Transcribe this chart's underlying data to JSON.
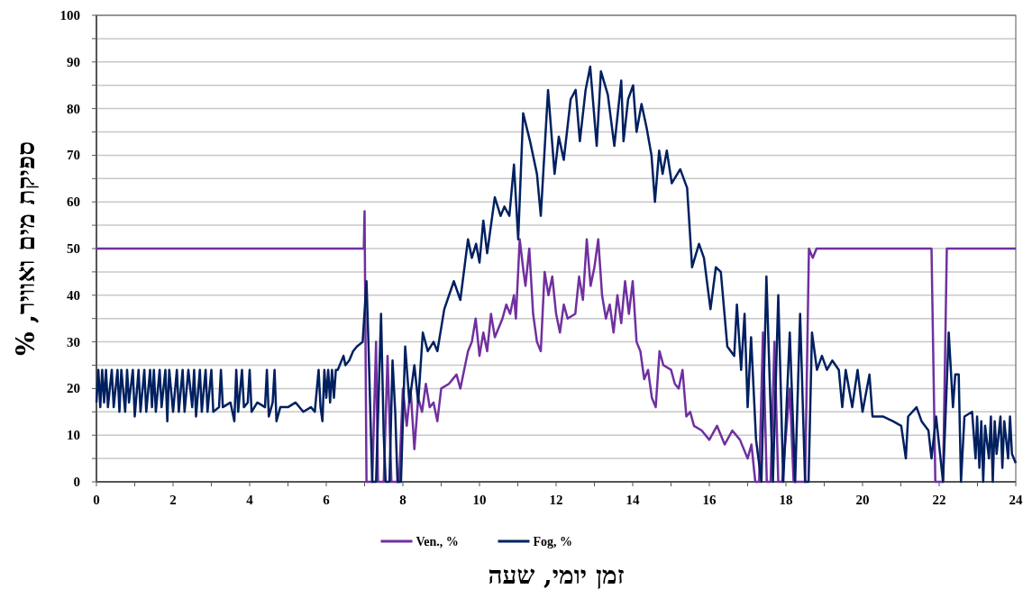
{
  "chart_data": {
    "type": "line",
    "xlabel": "זמן יומי, שעה",
    "ylabel": "ספיקת מים ואוויר, %",
    "xlim": [
      0,
      24
    ],
    "xticks": [
      0,
      {
        "value": 1,
        "label": null
      },
      2,
      {
        "value": 3,
        "label": null
      },
      4,
      {
        "value": 5,
        "label": null
      },
      6,
      {
        "value": 7,
        "label": null
      },
      8,
      {
        "value": 9,
        "label": null
      },
      10,
      {
        "value": 11,
        "label": null
      },
      12,
      {
        "value": 13,
        "label": null
      },
      14,
      {
        "value": 15,
        "label": null
      },
      16,
      {
        "value": 17,
        "label": null
      },
      18,
      {
        "value": 19,
        "label": null
      },
      20,
      {
        "value": 21,
        "label": null
      },
      22,
      {
        "value": 23,
        "label": null
      },
      24
    ],
    "ylim": [
      0,
      100
    ],
    "yticks": [
      0,
      {
        "value": 5,
        "label": null
      },
      10,
      {
        "value": 15,
        "label": null
      },
      20,
      {
        "value": 25,
        "label": null
      },
      30,
      {
        "value": 35,
        "label": null
      },
      40,
      {
        "value": 45,
        "label": null
      },
      50,
      {
        "value": 55,
        "label": null
      },
      60,
      {
        "value": 65,
        "label": null
      },
      70,
      {
        "value": 75,
        "label": null
      },
      80,
      {
        "value": 85,
        "label": null
      },
      90,
      {
        "value": 95,
        "label": null
      },
      100
    ],
    "grid": "y",
    "legend": "bottom",
    "marker": "none",
    "series": [
      {
        "name": "Ven., %",
        "color": "#7030a0",
        "x": [
          0,
          6.98,
          7.0,
          7.05,
          7.2,
          7.3,
          7.35,
          7.5,
          7.6,
          7.7,
          7.9,
          8.0,
          8.1,
          8.2,
          8.3,
          8.4,
          8.5,
          8.6,
          8.7,
          8.8,
          8.9,
          9.0,
          9.2,
          9.4,
          9.5,
          9.7,
          9.8,
          9.9,
          10.0,
          10.1,
          10.2,
          10.3,
          10.4,
          10.6,
          10.7,
          10.8,
          10.9,
          10.95,
          11.05,
          11.15,
          11.2,
          11.3,
          11.4,
          11.5,
          11.6,
          11.7,
          11.8,
          11.9,
          12.0,
          12.1,
          12.2,
          12.3,
          12.5,
          12.6,
          12.7,
          12.8,
          12.9,
          13.0,
          13.1,
          13.2,
          13.3,
          13.4,
          13.5,
          13.6,
          13.7,
          13.8,
          13.9,
          14.0,
          14.1,
          14.2,
          14.3,
          14.4,
          14.5,
          14.6,
          14.7,
          14.8,
          15.0,
          15.1,
          15.2,
          15.3,
          15.4,
          15.5,
          15.6,
          15.8,
          16.0,
          16.2,
          16.4,
          16.6,
          16.8,
          17.0,
          17.1,
          17.2,
          17.3,
          17.4,
          17.5,
          17.6,
          17.7,
          17.8,
          17.9,
          18.1,
          18.2,
          18.5,
          18.6,
          18.7,
          18.8,
          21.8,
          21.9,
          22.1,
          22.2,
          24
        ],
        "values": [
          50,
          50,
          58,
          0,
          0,
          30,
          0,
          0,
          27,
          0,
          0,
          20,
          12,
          20,
          7,
          18,
          15,
          21,
          16,
          17,
          13,
          20,
          21,
          23,
          20,
          28,
          30,
          35,
          27,
          32,
          28,
          36,
          31,
          35,
          38,
          36,
          40,
          35,
          52,
          45,
          42,
          50,
          36,
          30,
          28,
          45,
          40,
          44,
          36,
          32,
          38,
          35,
          36,
          44,
          39,
          52,
          42,
          46,
          52,
          40,
          35,
          38,
          32,
          40,
          34,
          43,
          36,
          43,
          30,
          28,
          22,
          24,
          18,
          16,
          28,
          25,
          24,
          21,
          20,
          24,
          14,
          15,
          12,
          11,
          9,
          12,
          8,
          11,
          9,
          5,
          8,
          0,
          0,
          32,
          0,
          0,
          30,
          0,
          0,
          20,
          0,
          0,
          50,
          48,
          50,
          50,
          0,
          0,
          50,
          50
        ]
      },
      {
        "name": "Fog, %",
        "color": "#002060",
        "x": [
          0,
          0.05,
          0.1,
          0.15,
          0.2,
          0.25,
          0.3,
          0.4,
          0.45,
          0.55,
          0.6,
          0.65,
          0.75,
          0.8,
          0.85,
          0.95,
          1.0,
          1.1,
          1.15,
          1.25,
          1.3,
          1.4,
          1.45,
          1.5,
          1.55,
          1.65,
          1.7,
          1.8,
          1.85,
          1.9,
          2.0,
          2.1,
          2.15,
          2.25,
          2.3,
          2.4,
          2.5,
          2.55,
          2.6,
          2.7,
          2.75,
          2.85,
          2.9,
          3.0,
          3.05,
          3.2,
          3.25,
          3.3,
          3.5,
          3.6,
          3.65,
          3.7,
          3.8,
          3.85,
          3.95,
          4.0,
          4.05,
          4.2,
          4.4,
          4.45,
          4.5,
          4.6,
          4.65,
          4.7,
          4.8,
          5.0,
          5.2,
          5.4,
          5.6,
          5.7,
          5.8,
          5.85,
          5.9,
          5.95,
          6.0,
          6.05,
          6.1,
          6.15,
          6.2,
          6.25,
          6.3,
          6.45,
          6.5,
          6.6,
          6.7,
          6.8,
          6.95,
          7.05,
          7.1,
          7.2,
          7.3,
          7.43,
          7.5,
          7.55,
          7.65,
          7.73,
          7.8,
          7.86,
          7.95,
          8.06,
          8.17,
          8.3,
          8.4,
          8.52,
          8.65,
          8.8,
          8.9,
          9.08,
          9.33,
          9.5,
          9.7,
          9.8,
          9.91,
          10.0,
          10.1,
          10.2,
          10.4,
          10.55,
          10.65,
          10.78,
          10.9,
          11.01,
          11.14,
          11.32,
          11.5,
          11.6,
          11.79,
          11.96,
          12.07,
          12.2,
          12.38,
          12.51,
          12.62,
          12.77,
          12.89,
          13.06,
          13.17,
          13.35,
          13.52,
          13.7,
          13.76,
          13.88,
          14.01,
          14.1,
          14.23,
          14.36,
          14.49,
          14.58,
          14.69,
          14.78,
          14.89,
          15.02,
          15.24,
          15.42,
          15.55,
          15.73,
          15.86,
          16.03,
          16.17,
          16.3,
          16.47,
          16.65,
          16.72,
          16.83,
          16.92,
          17.0,
          17.09,
          17.22,
          17.36,
          17.49,
          17.66,
          17.8,
          17.93,
          18.1,
          18.24,
          18.37,
          18.5,
          18.59,
          18.68,
          18.81,
          18.94,
          19.07,
          19.21,
          19.38,
          19.47,
          19.56,
          19.73,
          19.87,
          20.0,
          20.18,
          20.26,
          20.53,
          20.79,
          21.01,
          21.13,
          21.19,
          21.41,
          21.54,
          21.72,
          21.8,
          21.92,
          22.1,
          22.25,
          22.36,
          22.42,
          22.51,
          22.57,
          22.66,
          22.86,
          22.95,
          22.99,
          23.05,
          23.1,
          23.15,
          23.2,
          23.3,
          23.35,
          23.4,
          23.45,
          23.5,
          23.6,
          23.65,
          23.7,
          23.8,
          23.85,
          23.9,
          24
        ],
        "values": [
          17,
          24,
          16,
          24,
          17,
          24,
          16,
          24,
          16,
          24,
          15,
          24,
          15,
          24,
          17,
          24,
          14,
          24,
          15,
          24,
          15,
          24,
          16,
          24,
          15,
          24,
          16,
          24,
          13,
          24,
          15,
          24,
          15,
          24,
          15,
          24,
          16,
          24,
          14,
          24,
          15,
          24,
          15,
          24,
          15,
          16,
          24,
          16,
          17,
          13,
          24,
          15,
          24,
          16,
          17,
          24,
          15,
          17,
          16,
          24,
          14,
          17,
          24,
          13,
          16,
          16,
          17,
          15,
          16,
          15,
          24,
          16,
          13,
          24,
          18,
          24,
          17,
          24,
          18,
          24,
          24,
          27,
          25,
          26,
          28,
          29,
          30,
          43,
          30,
          0,
          0,
          36,
          10,
          0,
          0,
          26,
          15,
          0,
          0,
          29,
          17,
          25,
          17,
          32,
          28,
          30,
          28,
          37,
          43,
          39,
          52,
          48,
          51,
          47,
          56,
          49,
          61,
          57,
          59,
          57,
          68,
          52,
          79,
          73,
          66,
          57,
          84,
          66,
          74,
          69,
          82,
          84,
          73,
          84,
          89,
          72,
          88,
          83,
          72,
          86,
          73,
          82,
          85,
          75,
          81,
          76,
          70,
          60,
          71,
          66,
          71,
          64,
          67,
          63,
          46,
          51,
          48,
          37,
          46,
          45,
          29,
          27,
          38,
          24,
          36,
          16,
          31,
          9,
          0,
          44,
          0,
          40,
          0,
          32,
          0,
          36,
          0,
          0,
          32,
          24,
          27,
          24,
          26,
          24,
          16,
          24,
          16,
          24,
          15,
          23,
          14,
          14,
          13,
          12,
          5,
          14,
          16,
          13,
          11,
          5,
          14,
          0,
          32,
          16,
          23,
          23,
          0,
          14,
          15,
          5,
          14,
          3,
          13,
          0,
          12,
          5,
          14,
          0,
          13,
          6,
          14,
          3,
          13,
          5,
          14,
          6,
          4
        ]
      }
    ]
  }
}
